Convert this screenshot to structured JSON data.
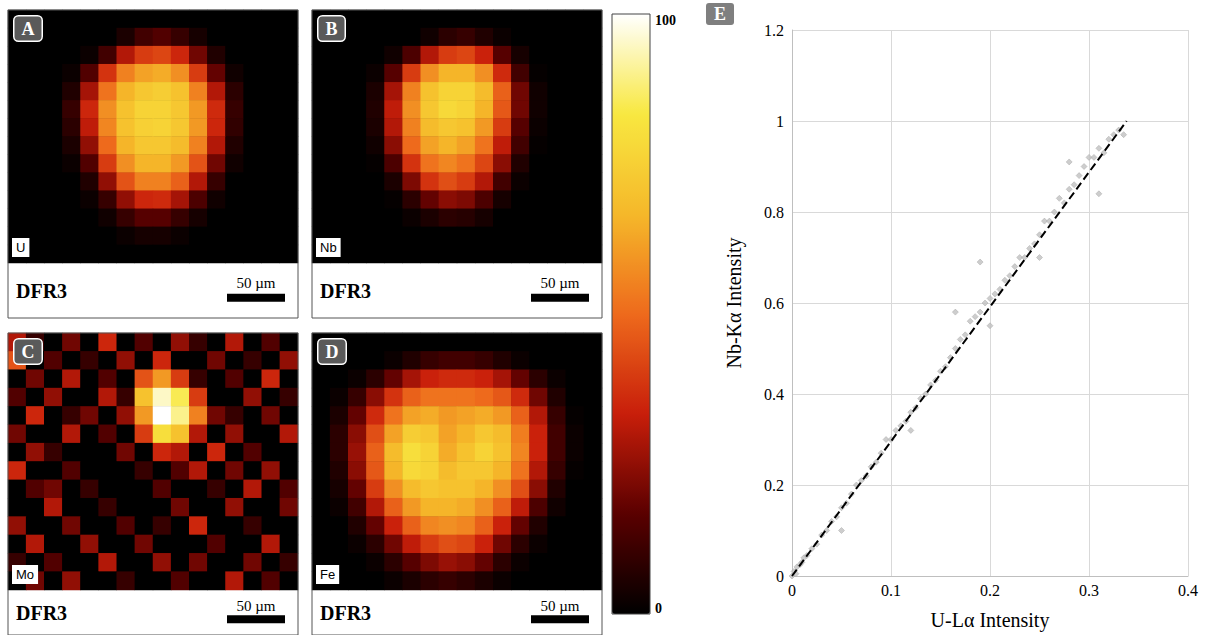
{
  "chart_data": [
    {
      "type": "heatmap",
      "panel": "A",
      "title": "U",
      "sample": "DFR3",
      "scale_bar": "50 µm",
      "cells": [
        [
          0,
          0,
          0,
          0,
          0,
          0,
          0,
          0,
          0,
          0,
          0,
          0,
          0,
          0,
          0,
          0
        ],
        [
          0,
          0,
          0,
          0,
          0,
          0,
          5,
          12,
          15,
          10,
          4,
          0,
          0,
          0,
          0,
          0
        ],
        [
          0,
          0,
          0,
          0,
          2,
          12,
          30,
          40,
          42,
          35,
          20,
          6,
          0,
          0,
          0,
          0
        ],
        [
          0,
          0,
          0,
          2,
          15,
          38,
          55,
          62,
          64,
          58,
          40,
          18,
          3,
          0,
          0,
          0
        ],
        [
          0,
          0,
          0,
          6,
          28,
          52,
          66,
          72,
          74,
          70,
          55,
          30,
          8,
          0,
          0,
          0
        ],
        [
          0,
          0,
          0,
          10,
          35,
          58,
          70,
          76,
          76,
          72,
          60,
          36,
          10,
          0,
          0,
          0
        ],
        [
          0,
          0,
          0,
          8,
          32,
          56,
          70,
          75,
          76,
          72,
          60,
          35,
          9,
          0,
          0,
          0
        ],
        [
          0,
          0,
          0,
          5,
          25,
          50,
          66,
          72,
          72,
          68,
          55,
          30,
          6,
          0,
          0,
          0
        ],
        [
          0,
          0,
          0,
          2,
          15,
          40,
          58,
          66,
          66,
          60,
          45,
          20,
          3,
          0,
          0,
          0
        ],
        [
          0,
          0,
          0,
          0,
          6,
          25,
          45,
          55,
          55,
          48,
          30,
          10,
          0,
          0,
          0,
          0
        ],
        [
          0,
          0,
          0,
          0,
          2,
          10,
          25,
          35,
          36,
          28,
          14,
          3,
          0,
          0,
          0,
          0
        ],
        [
          0,
          0,
          0,
          0,
          0,
          3,
          10,
          16,
          16,
          10,
          4,
          0,
          0,
          0,
          0,
          0
        ],
        [
          0,
          0,
          0,
          0,
          0,
          0,
          2,
          4,
          4,
          2,
          0,
          0,
          0,
          0,
          0,
          0
        ],
        [
          0,
          0,
          0,
          0,
          0,
          0,
          0,
          0,
          0,
          0,
          0,
          0,
          0,
          0,
          0,
          0
        ]
      ]
    },
    {
      "type": "heatmap",
      "panel": "B",
      "title": "Nb",
      "sample": "DFR3",
      "scale_bar": "50 µm",
      "cells": [
        [
          0,
          0,
          0,
          0,
          0,
          0,
          0,
          0,
          0,
          0,
          0,
          0,
          0,
          0,
          0,
          0
        ],
        [
          0,
          0,
          0,
          0,
          0,
          0,
          3,
          8,
          10,
          6,
          2,
          0,
          0,
          0,
          0,
          0
        ],
        [
          0,
          0,
          0,
          0,
          3,
          14,
          30,
          40,
          42,
          34,
          16,
          4,
          0,
          0,
          0,
          0
        ],
        [
          0,
          0,
          0,
          2,
          16,
          40,
          58,
          66,
          66,
          58,
          36,
          12,
          1,
          0,
          0,
          0
        ],
        [
          0,
          0,
          0,
          5,
          28,
          55,
          70,
          76,
          76,
          68,
          48,
          20,
          3,
          0,
          0,
          0
        ],
        [
          0,
          0,
          0,
          6,
          32,
          58,
          72,
          78,
          76,
          66,
          46,
          20,
          3,
          0,
          0,
          0
        ],
        [
          0,
          0,
          0,
          5,
          30,
          55,
          68,
          72,
          70,
          60,
          40,
          16,
          2,
          0,
          0,
          0
        ],
        [
          0,
          0,
          0,
          3,
          24,
          50,
          62,
          66,
          62,
          52,
          32,
          12,
          1,
          0,
          0,
          0
        ],
        [
          0,
          0,
          0,
          1,
          14,
          38,
          52,
          56,
          52,
          42,
          24,
          6,
          0,
          0,
          0,
          0
        ],
        [
          0,
          0,
          0,
          0,
          5,
          22,
          38,
          44,
          40,
          30,
          12,
          2,
          0,
          0,
          0,
          0
        ],
        [
          0,
          0,
          0,
          0,
          1,
          8,
          18,
          24,
          22,
          14,
          4,
          0,
          0,
          0,
          0,
          0
        ],
        [
          0,
          0,
          0,
          0,
          0,
          2,
          5,
          8,
          7,
          4,
          0,
          0,
          0,
          0,
          0,
          0
        ],
        [
          0,
          0,
          0,
          0,
          0,
          0,
          0,
          0,
          0,
          0,
          0,
          0,
          0,
          0,
          0,
          0
        ],
        [
          0,
          0,
          0,
          0,
          0,
          0,
          0,
          0,
          0,
          0,
          0,
          0,
          0,
          0,
          0,
          0
        ]
      ]
    },
    {
      "type": "heatmap",
      "panel": "C",
      "title": "Mo",
      "sample": "DFR3",
      "scale_bar": "50 µm",
      "cells": [
        [
          30,
          10,
          0,
          20,
          0,
          35,
          0,
          15,
          0,
          25,
          10,
          0,
          30,
          0,
          15,
          0
        ],
        [
          45,
          0,
          15,
          0,
          10,
          0,
          25,
          0,
          35,
          0,
          0,
          20,
          0,
          10,
          0,
          25
        ],
        [
          0,
          20,
          0,
          30,
          0,
          15,
          0,
          45,
          60,
          40,
          10,
          0,
          15,
          0,
          35,
          0
        ],
        [
          15,
          0,
          25,
          0,
          0,
          30,
          10,
          70,
          95,
          85,
          40,
          0,
          0,
          25,
          0,
          10
        ],
        [
          0,
          35,
          0,
          10,
          20,
          0,
          25,
          60,
          100,
          90,
          55,
          20,
          10,
          0,
          20,
          0
        ],
        [
          20,
          0,
          0,
          30,
          0,
          15,
          0,
          40,
          80,
          70,
          30,
          0,
          25,
          0,
          0,
          30
        ],
        [
          0,
          25,
          10,
          0,
          0,
          0,
          20,
          0,
          35,
          30,
          0,
          35,
          0,
          15,
          0,
          0
        ],
        [
          35,
          0,
          0,
          15,
          0,
          0,
          0,
          10,
          0,
          15,
          30,
          0,
          20,
          0,
          25,
          0
        ],
        [
          0,
          15,
          20,
          0,
          10,
          0,
          0,
          0,
          15,
          0,
          0,
          10,
          0,
          30,
          0,
          15
        ],
        [
          0,
          0,
          30,
          0,
          0,
          10,
          0,
          0,
          0,
          20,
          0,
          0,
          25,
          0,
          0,
          20
        ],
        [
          25,
          0,
          0,
          20,
          0,
          0,
          15,
          0,
          10,
          0,
          35,
          0,
          0,
          10,
          0,
          0
        ],
        [
          0,
          30,
          0,
          0,
          25,
          0,
          0,
          20,
          0,
          0,
          0,
          15,
          0,
          0,
          30,
          0
        ],
        [
          10,
          0,
          15,
          0,
          0,
          30,
          0,
          0,
          25,
          0,
          20,
          0,
          0,
          20,
          0,
          10
        ],
        [
          0,
          20,
          0,
          25,
          0,
          0,
          10,
          0,
          0,
          15,
          0,
          0,
          30,
          0,
          15,
          0
        ]
      ]
    },
    {
      "type": "heatmap",
      "panel": "D",
      "title": "Fe",
      "sample": "DFR3",
      "scale_bar": "50 µm",
      "cells": [
        [
          0,
          0,
          0,
          0,
          0,
          0,
          0,
          0,
          0,
          0,
          0,
          0,
          0,
          0,
          0,
          0
        ],
        [
          0,
          0,
          0,
          0,
          2,
          6,
          10,
          12,
          12,
          10,
          6,
          2,
          0,
          0,
          0,
          0
        ],
        [
          0,
          0,
          2,
          8,
          18,
          28,
          34,
          36,
          36,
          34,
          28,
          18,
          8,
          2,
          0,
          0
        ],
        [
          0,
          2,
          10,
          24,
          38,
          48,
          52,
          52,
          52,
          50,
          46,
          36,
          20,
          6,
          0,
          0
        ],
        [
          0,
          5,
          18,
          36,
          52,
          62,
          64,
          60,
          62,
          64,
          60,
          48,
          30,
          10,
          1,
          0
        ],
        [
          0,
          8,
          24,
          44,
          62,
          74,
          72,
          62,
          66,
          72,
          68,
          54,
          34,
          12,
          2,
          0
        ],
        [
          0,
          8,
          26,
          48,
          68,
          80,
          76,
          64,
          70,
          76,
          70,
          56,
          34,
          12,
          2,
          0
        ],
        [
          0,
          6,
          24,
          46,
          66,
          78,
          76,
          68,
          72,
          72,
          66,
          52,
          30,
          10,
          1,
          0
        ],
        [
          0,
          4,
          18,
          40,
          58,
          68,
          72,
          70,
          70,
          66,
          58,
          44,
          24,
          6,
          0,
          0
        ],
        [
          0,
          2,
          12,
          30,
          48,
          60,
          66,
          66,
          64,
          58,
          48,
          32,
          14,
          3,
          0,
          0
        ],
        [
          0,
          0,
          6,
          18,
          34,
          48,
          56,
          58,
          56,
          48,
          34,
          18,
          6,
          0,
          0,
          0
        ],
        [
          0,
          0,
          2,
          8,
          20,
          32,
          40,
          44,
          42,
          34,
          20,
          8,
          2,
          0,
          0,
          0
        ],
        [
          0,
          0,
          0,
          2,
          8,
          16,
          22,
          26,
          24,
          18,
          8,
          2,
          0,
          0,
          0,
          0
        ],
        [
          0,
          0,
          0,
          0,
          2,
          5,
          8,
          10,
          8,
          5,
          2,
          0,
          0,
          0,
          0,
          0
        ]
      ]
    },
    {
      "type": "scatter",
      "panel": "E",
      "x_label": "U-Lα Intensity",
      "y_label": "Nb-Kα Intensity",
      "xlim": [
        0,
        0.4
      ],
      "ylim": [
        0,
        1.2
      ],
      "xticks": [
        0,
        0.1,
        0.2,
        0.3,
        0.4
      ],
      "yticks": [
        0,
        0.2,
        0.4,
        0.6,
        0.8,
        1,
        1.2
      ],
      "grid": true,
      "color": "#c0c0c0",
      "marker": "diamond",
      "x": [
        0,
        0.002,
        0.004,
        0.005,
        0.008,
        0.01,
        0.012,
        0.015,
        0.02,
        0.025,
        0.03,
        0.035,
        0.04,
        0.045,
        0.05,
        0.055,
        0.06,
        0.065,
        0.07,
        0.075,
        0.08,
        0.085,
        0.09,
        0.095,
        0.1,
        0.105,
        0.11,
        0.115,
        0.12,
        0.125,
        0.13,
        0.135,
        0.14,
        0.145,
        0.15,
        0.155,
        0.16,
        0.165,
        0.17,
        0.175,
        0.18,
        0.185,
        0.19,
        0.195,
        0.2,
        0.205,
        0.21,
        0.215,
        0.22,
        0.225,
        0.23,
        0.235,
        0.24,
        0.245,
        0.25,
        0.255,
        0.26,
        0.265,
        0.27,
        0.275,
        0.28,
        0.285,
        0.29,
        0.295,
        0.3,
        0.305,
        0.31,
        0.315,
        0.32,
        0.325,
        0.33,
        0.335,
        0.31,
        0.19,
        0.165,
        0.2,
        0.05,
        0.12,
        0.25,
        0.28
      ],
      "y": [
        0,
        0.01,
        0.005,
        0.02,
        0.025,
        0.03,
        0.04,
        0.045,
        0.06,
        0.07,
        0.09,
        0.1,
        0.12,
        0.13,
        0.15,
        0.16,
        0.18,
        0.2,
        0.21,
        0.22,
        0.24,
        0.25,
        0.27,
        0.3,
        0.3,
        0.32,
        0.33,
        0.34,
        0.36,
        0.37,
        0.39,
        0.4,
        0.42,
        0.43,
        0.45,
        0.46,
        0.48,
        0.5,
        0.52,
        0.53,
        0.56,
        0.57,
        0.58,
        0.6,
        0.61,
        0.62,
        0.63,
        0.65,
        0.66,
        0.68,
        0.7,
        0.7,
        0.72,
        0.73,
        0.75,
        0.78,
        0.78,
        0.8,
        0.83,
        0.82,
        0.85,
        0.86,
        0.88,
        0.9,
        0.92,
        0.92,
        0.94,
        0.93,
        0.96,
        0.97,
        0.98,
        0.97,
        0.84,
        0.69,
        0.58,
        0.55,
        0.1,
        0.32,
        0.7,
        0.91
      ],
      "trendline": {
        "x": [
          0,
          0.338
        ],
        "y": [
          0,
          1.0
        ],
        "line_style": "dashed",
        "color": "#000000"
      }
    }
  ],
  "color_bar": {
    "range": [
      0,
      100
    ],
    "ticks": [
      0,
      100
    ]
  }
}
